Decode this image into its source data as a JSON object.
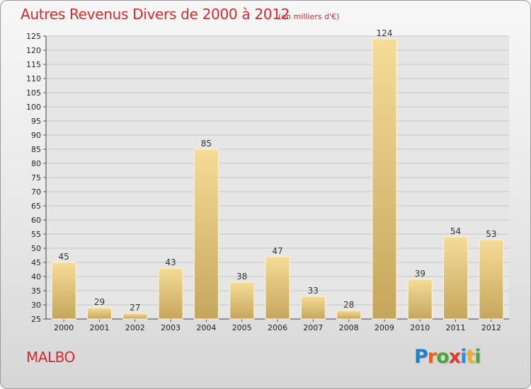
{
  "header": {
    "title": "Autres Revenus Divers de 2000 à 2012",
    "subtitle": "(en milliers d'€)"
  },
  "footer": {
    "commune": "MALBO",
    "brand": "Proxiti",
    "brand_colors": [
      "#1f7fd0",
      "#e8611a",
      "#4aa63a",
      "#e03a2c",
      "#2a8fd6",
      "#f0b020",
      "#4aa63a"
    ]
  },
  "colors": {
    "title": "#d8282d",
    "bar_light": "#f5dc97",
    "bar_dark": "#c9a95f",
    "grid": "#c8c8c8"
  },
  "chart_data": {
    "type": "bar",
    "title": "Autres Revenus Divers de 2000 à 2012",
    "subtitle": "(en milliers d'€)",
    "categories": [
      "2000",
      "2001",
      "2002",
      "2003",
      "2004",
      "2005",
      "2006",
      "2007",
      "2008",
      "2009",
      "2010",
      "2011",
      "2012"
    ],
    "values": [
      45,
      29,
      27,
      43,
      85,
      38,
      47,
      33,
      28,
      124,
      39,
      54,
      53
    ],
    "ylim": [
      25,
      125
    ],
    "yticks": [
      25,
      30,
      35,
      40,
      45,
      50,
      55,
      60,
      65,
      70,
      75,
      80,
      85,
      90,
      95,
      100,
      105,
      110,
      115,
      120,
      125
    ],
    "grid": true,
    "data_labels": true
  }
}
